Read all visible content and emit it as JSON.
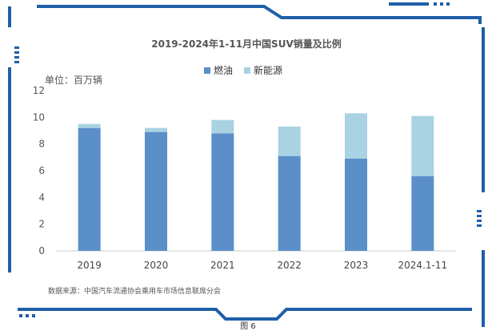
{
  "figure_caption": "图 6",
  "source_note": "数据来源：中国汽车流通协会乘用车市场信息联席分会",
  "colors": {
    "frame": "#1f5fa8",
    "fuel": "#5b8fc9",
    "nev": "#a9d2e3"
  },
  "chart_data": {
    "type": "bar",
    "stacked": true,
    "title": "2019-2024年1-11月中国SUV销量及比例",
    "unit_label": "单位：百万辆",
    "categories": [
      "2019",
      "2020",
      "2021",
      "2022",
      "2023",
      "2024.1-11"
    ],
    "series": [
      {
        "name": "燃油",
        "values": [
          9.2,
          8.9,
          8.8,
          7.1,
          6.9,
          5.6
        ]
      },
      {
        "name": "新能源",
        "values": [
          0.3,
          0.3,
          1.0,
          2.2,
          3.4,
          4.5
        ]
      }
    ],
    "ylim": [
      0,
      12
    ],
    "yticks": [
      0,
      2,
      4,
      6,
      8,
      10,
      12
    ],
    "legend_position": "top-center",
    "grid": false
  }
}
